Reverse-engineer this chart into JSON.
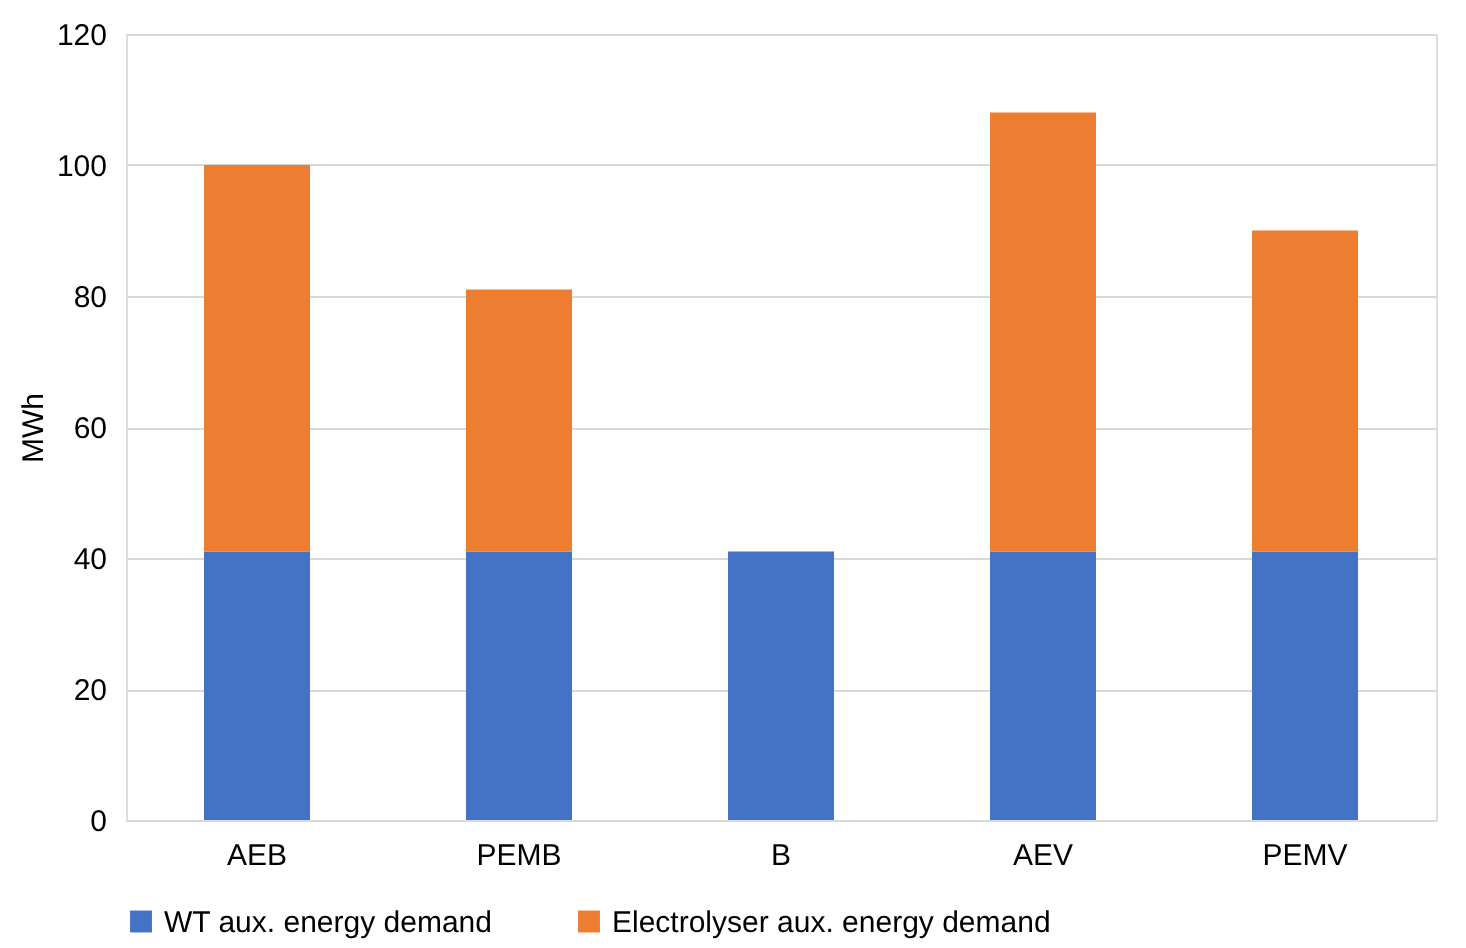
{
  "chart_data": {
    "type": "bar",
    "stacked": true,
    "ylabel": "MWh",
    "categories": [
      "AEB",
      "PEMB",
      "B",
      "AEV",
      "PEMV"
    ],
    "series": [
      {
        "name": "WT aux. energy demand",
        "color": "#4472c4",
        "values": [
          41,
          41,
          41,
          41,
          41
        ]
      },
      {
        "name": "Electrolyser aux. energy demand",
        "color": "#ed7d31",
        "values": [
          59,
          40,
          null,
          67,
          49
        ]
      }
    ],
    "ylim": [
      0,
      120
    ],
    "yticks": [
      0,
      20,
      40,
      60,
      80,
      100,
      120
    ],
    "grid": "y",
    "legend": "bottom"
  }
}
